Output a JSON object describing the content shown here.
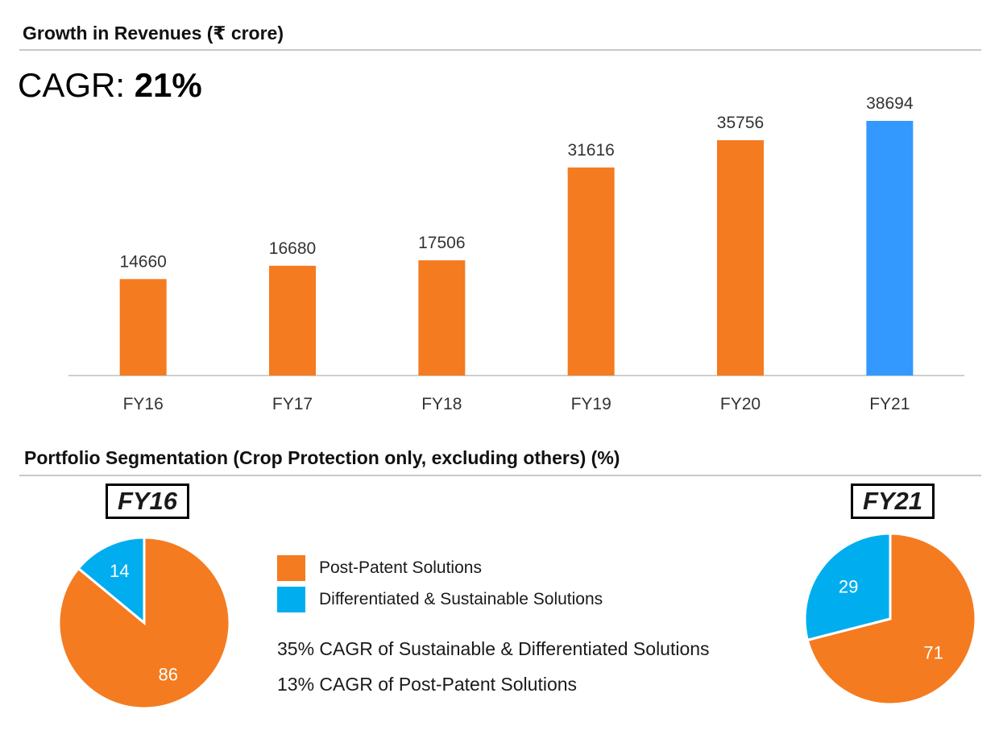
{
  "section1": {
    "title": "Growth in Revenues (₹ crore)"
  },
  "cagr": {
    "prefix": "CAGR: ",
    "value": "21%"
  },
  "section2": {
    "title": "Portfolio Segmentation (Crop Protection only, excluding others) (%)"
  },
  "colors": {
    "orange": "#F47B20",
    "blue": "#3399FF",
    "cyan": "#00AEEF"
  },
  "chart_data": [
    {
      "type": "bar",
      "title": "Growth in Revenues (₹ crore)",
      "categories": [
        "FY16",
        "FY17",
        "FY18",
        "FY19",
        "FY20",
        "FY21"
      ],
      "values": [
        14660,
        16680,
        17506,
        31616,
        35756,
        38694
      ],
      "highlight_color": {
        "FY21": "#3399FF"
      },
      "bar_color": "#F47B20",
      "ylim": [
        0,
        40000
      ],
      "grid": false
    },
    {
      "type": "pie",
      "title": "FY16",
      "labels": [
        "Differentiated & Sustainable Solutions",
        "Post-Patent Solutions"
      ],
      "values": [
        14,
        86
      ],
      "colors": [
        "#00AEEF",
        "#F47B20"
      ]
    },
    {
      "type": "pie",
      "title": "FY21",
      "labels": [
        "Differentiated & Sustainable Solutions",
        "Post-Patent Solutions"
      ],
      "values": [
        29,
        71
      ],
      "colors": [
        "#00AEEF",
        "#F47B20"
      ]
    }
  ],
  "legend": [
    {
      "label": "Post-Patent Solutions",
      "color": "#F47B20"
    },
    {
      "label": "Differentiated & Sustainable Solutions",
      "color": "#00AEEF"
    }
  ],
  "notes": [
    "35% CAGR of Sustainable & Differentiated Solutions",
    "13% CAGR of Post-Patent Solutions"
  ]
}
